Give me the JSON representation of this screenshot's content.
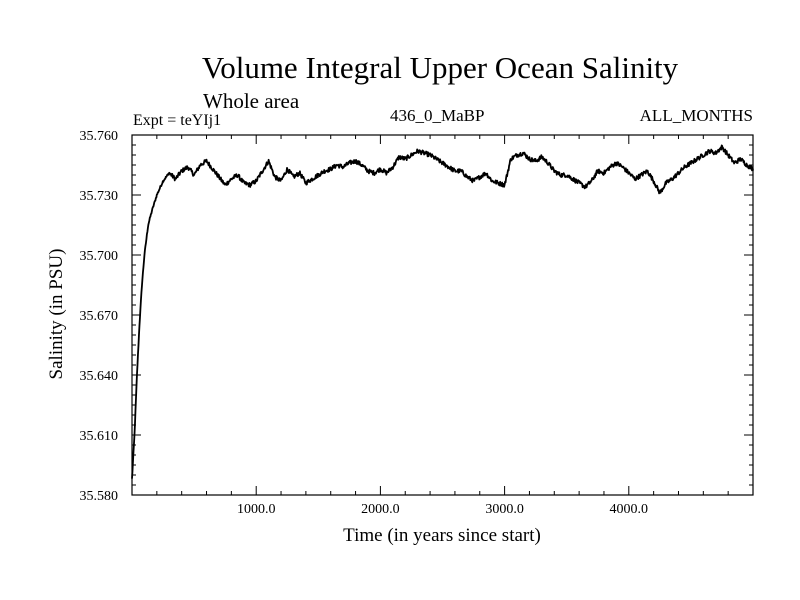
{
  "chart_data": {
    "type": "line",
    "title": "Volume Integral Upper Ocean Salinity",
    "subtitle": "Whole area",
    "experiment_label": "Expt = teYIj1",
    "case_label": "436_0_MaBP",
    "months_label": "ALL_MONTHS",
    "xlabel": "Time (in years since start)",
    "ylabel": "Salinity (in PSU)",
    "xlim": [
      0,
      5000
    ],
    "ylim": [
      35.58,
      35.76
    ],
    "x_ticks": [
      1000,
      2000,
      3000,
      4000
    ],
    "x_tick_labels": [
      "1000.0",
      "2000.0",
      "3000.0",
      "4000.0"
    ],
    "y_ticks": [
      35.58,
      35.61,
      35.64,
      35.67,
      35.7,
      35.73,
      35.76
    ],
    "y_tick_labels": [
      "35.580",
      "35.610",
      "35.640",
      "35.670",
      "35.700",
      "35.730",
      "35.760"
    ],
    "grid": false,
    "line_color": "#000000",
    "series": [
      {
        "name": "Salinity",
        "x": [
          0,
          20,
          40,
          60,
          80,
          100,
          130,
          160,
          200,
          250,
          300,
          350,
          400,
          450,
          500,
          550,
          600,
          650,
          700,
          750,
          800,
          850,
          900,
          950,
          1000,
          1050,
          1100,
          1150,
          1200,
          1250,
          1300,
          1350,
          1400,
          1450,
          1500,
          1550,
          1600,
          1650,
          1700,
          1750,
          1800,
          1850,
          1900,
          1950,
          2000,
          2050,
          2100,
          2150,
          2200,
          2250,
          2300,
          2350,
          2400,
          2450,
          2500,
          2550,
          2600,
          2650,
          2700,
          2750,
          2800,
          2850,
          2900,
          2950,
          3000,
          3050,
          3100,
          3150,
          3200,
          3250,
          3300,
          3350,
          3400,
          3450,
          3500,
          3550,
          3600,
          3650,
          3700,
          3750,
          3800,
          3850,
          3900,
          3950,
          4000,
          4050,
          4100,
          4150,
          4200,
          4250,
          4300,
          4350,
          4400,
          4450,
          4500,
          4550,
          4600,
          4650,
          4700,
          4750,
          4800,
          4850,
          4900,
          4950,
          5000
        ],
        "y": [
          35.588,
          35.61,
          35.64,
          35.665,
          35.685,
          35.7,
          35.715,
          35.722,
          35.73,
          35.737,
          35.741,
          35.738,
          35.742,
          35.744,
          35.74,
          35.745,
          35.747,
          35.743,
          35.739,
          35.735,
          35.738,
          35.74,
          35.736,
          35.735,
          35.737,
          35.742,
          35.747,
          35.739,
          35.737,
          35.743,
          35.739,
          35.741,
          35.736,
          35.738,
          35.74,
          35.742,
          35.743,
          35.745,
          35.744,
          35.746,
          35.747,
          35.745,
          35.742,
          35.741,
          35.743,
          35.741,
          35.744,
          35.749,
          35.748,
          35.75,
          35.752,
          35.751,
          35.75,
          35.748,
          35.746,
          35.744,
          35.742,
          35.742,
          35.739,
          35.737,
          35.739,
          35.741,
          35.737,
          35.736,
          35.735,
          35.748,
          35.75,
          35.751,
          35.748,
          35.747,
          35.749,
          35.746,
          35.742,
          35.74,
          35.74,
          35.738,
          35.736,
          35.734,
          35.737,
          35.742,
          35.741,
          35.744,
          35.746,
          35.744,
          35.741,
          35.738,
          35.74,
          35.742,
          35.737,
          35.731,
          35.736,
          35.738,
          35.741,
          35.744,
          35.746,
          35.748,
          35.75,
          35.752,
          35.751,
          35.754,
          35.75,
          35.746,
          35.748,
          35.745,
          35.743
        ]
      }
    ]
  }
}
